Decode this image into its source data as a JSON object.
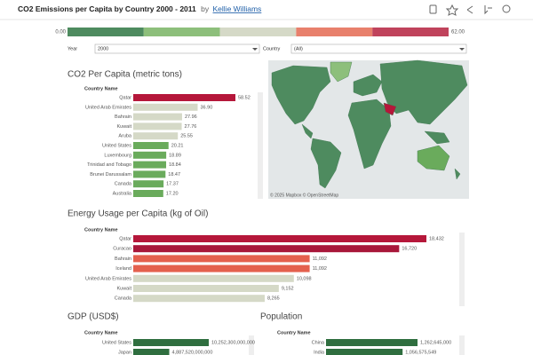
{
  "header": {
    "title": "CO2 Emissions per Capita by Country 2000 - 2011",
    "by": "by",
    "author": "Kellie Williams"
  },
  "legend": {
    "min_label": "0.00",
    "max_label": "62.00",
    "colors": [
      "#4e8b5f",
      "#8dbf7b",
      "#d5d9c7",
      "#e8806c",
      "#c0435c"
    ]
  },
  "filters": [
    {
      "label": "Year",
      "value": "2000"
    },
    {
      "label": "Country",
      "value": "(All)"
    }
  ],
  "map": {
    "attribution": "© 2025 Mapbox © OpenStreetMap"
  },
  "co2": {
    "title": "CO2 Per Capita (metric tons)",
    "column_header": "Country Name",
    "categories": [
      "Qatar",
      "United Arab Emirates",
      "Bahrain",
      "Kuwait",
      "Aruba",
      "United States",
      "Luxembourg",
      "Trinidad and Tobago",
      "Brunei Darussalam",
      "Canada",
      "Australia"
    ],
    "values": [
      58.52,
      36.9,
      27.96,
      27.76,
      25.55,
      20.21,
      18.89,
      18.84,
      18.47,
      17.37,
      17.2
    ],
    "value_labels": [
      "58.52",
      "36.90",
      "27.96",
      "27.76",
      "25.55",
      "20.21",
      "18.89",
      "18.84",
      "18.47",
      "17.37",
      "17.20"
    ],
    "colors": [
      "#b5173a",
      "#d5d9c7",
      "#d5d9c7",
      "#d5d9c7",
      "#d5d9c7",
      "#6aab5c",
      "#6aab5c",
      "#6aab5c",
      "#6aab5c",
      "#6aab5c",
      "#6aab5c"
    ]
  },
  "energy": {
    "title": "Energy Usage per Capita (kg of Oil)",
    "column_header": "Country Name",
    "categories": [
      "Qatar",
      "Curacao",
      "Bahrain",
      "Iceland",
      "United Arab Emirates",
      "Kuwait",
      "Canada"
    ],
    "values": [
      18432,
      16720,
      11092,
      11092,
      10098,
      9152,
      8265
    ],
    "value_labels": [
      "18,432",
      "16,720",
      "11,092",
      "11,092",
      "10,098",
      "9,152",
      "8,265"
    ],
    "colors": [
      "#b5173a",
      "#a8173a",
      "#e4604e",
      "#e4604e",
      "#d5d9c7",
      "#d5d9c7",
      "#d5d9c7"
    ]
  },
  "gdp": {
    "title": "GDP (USD$)",
    "column_header": "Country Name",
    "categories": [
      "United States",
      "Japan"
    ],
    "values": [
      10252300000000,
      4887520000000
    ],
    "value_labels": [
      "10,252,300,000,000",
      "4,887,520,000,000"
    ],
    "colors": [
      "#2f6e3f",
      "#2f6e3f"
    ]
  },
  "population": {
    "title": "Population",
    "column_header": "Country Name",
    "categories": [
      "China",
      "India"
    ],
    "values": [
      1262645000,
      1056575549
    ],
    "value_labels": [
      "1,262,645,000",
      "1,056,575,549"
    ],
    "colors": [
      "#2f6e3f",
      "#2f6e3f"
    ]
  }
}
